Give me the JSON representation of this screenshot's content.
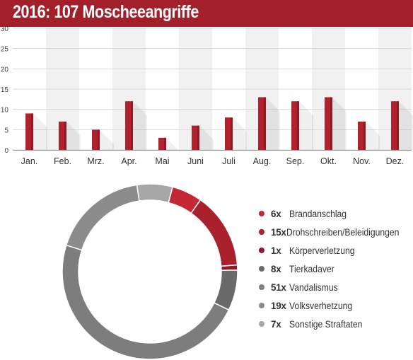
{
  "title": "2016: 107 Moscheeangriffe",
  "chart_data": [
    {
      "type": "bar",
      "categories": [
        "Jan.",
        "Feb.",
        "Mrz.",
        "Apr.",
        "Mai",
        "Juni",
        "Juli",
        "Aug.",
        "Sep.",
        "Okt.",
        "Nov.",
        "Dez."
      ],
      "values": [
        9,
        7,
        5,
        12,
        3,
        6,
        8,
        13,
        12,
        13,
        7,
        12
      ],
      "ylim": [
        0,
        30
      ],
      "yticks": [
        0,
        5,
        10,
        15,
        20,
        25,
        30
      ],
      "grid": true,
      "colors": {
        "bar": "#b0222d",
        "bar_dark": "#7d141c",
        "band": "#f1f1f1",
        "grid": "#d9d9d9"
      }
    },
    {
      "type": "pie",
      "donut": true,
      "slices": [
        {
          "count": "6x",
          "label": "Brandanschlag",
          "value": 6,
          "color": "#c42836"
        },
        {
          "count": "15x",
          "label": "Drohschreiben/Beleidigungen",
          "value": 15,
          "color": "#a8212d"
        },
        {
          "count": "1x",
          "label": "Körperverletzung",
          "value": 1,
          "color": "#8c1b25"
        },
        {
          "count": "8x",
          "label": "Tierkadaver",
          "value": 8,
          "color": "#6a6a6a"
        },
        {
          "count": "51x",
          "label": "Vandalismus",
          "value": 51,
          "color": "#7d7d7d"
        },
        {
          "count": "19x",
          "label": "Volksverhetzung",
          "value": 19,
          "color": "#8c8c8c"
        },
        {
          "count": "7x",
          "label": "Sonstige Straftaten",
          "value": 7,
          "color": "#a6a6a6"
        }
      ]
    }
  ]
}
